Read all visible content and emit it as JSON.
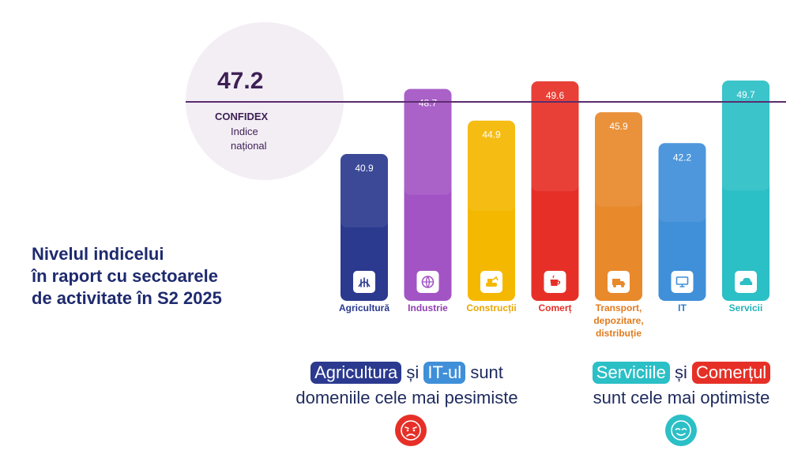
{
  "national": {
    "value": "47.2",
    "name": "CONFIDEX",
    "subtitle": "Indice național",
    "value_num": 47.2
  },
  "title_lines": [
    "Nivelul indicelui",
    "în raport cu sectoarele",
    "de activitate în S2 2025"
  ],
  "chart_data": {
    "type": "bar",
    "title": "Nivelul indicelui în raport cu sectoarele de activitate în S2 2025",
    "categories": [
      "Agricultură",
      "Industrie",
      "Construcții",
      "Comerț",
      "Transport, depozitare, distribuție",
      "IT",
      "Servicii"
    ],
    "category_lines": [
      [
        "Agricultură"
      ],
      [
        "Industrie"
      ],
      [
        "Construcții"
      ],
      [
        "Comerț"
      ],
      [
        "Transport,",
        "depozitare,",
        "distribuție"
      ],
      [
        "IT"
      ],
      [
        "Servicii"
      ]
    ],
    "values": [
      40.9,
      48.7,
      44.9,
      49.6,
      45.9,
      42.2,
      49.7
    ],
    "value_labels": [
      "40.9",
      "48.7",
      "44.9",
      "49.6",
      "45.9",
      "42.2",
      "49.7"
    ],
    "colors": [
      "#2b3a8f",
      "#a354c4",
      "#f5b800",
      "#e63027",
      "#e8892b",
      "#3f8fd9",
      "#2bbfc6"
    ],
    "label_colors": [
      "#2b3a8f",
      "#8f3fb0",
      "#e8a600",
      "#e63027",
      "#e07b1e",
      "#2f7dc8",
      "#22b3ba"
    ],
    "icons": [
      "wheat-icon",
      "globe-gear-icon",
      "excavator-icon",
      "coffee-cup-icon",
      "truck-icon",
      "monitor-icon",
      "cloud-icon"
    ],
    "reference_line": 47.2,
    "ylim": [
      0,
      50
    ]
  },
  "notes": {
    "left": {
      "pill1": "Agricultura",
      "join": "și",
      "pill2": "IT-ul",
      "tail": "sunt",
      "line2": "domeniile cele mai pesimiste"
    },
    "right": {
      "pill1": "Serviciile",
      "join": "și",
      "pill2": "Comerțul",
      "line2": "sunt cele mai optimiste"
    }
  },
  "colors": {
    "navy": "#1e2a6e",
    "sad": "#e63027",
    "happy": "#2bbfc6",
    "agri": "#2b3a8f",
    "it": "#3f8fd9",
    "serv": "#2bbfc6",
    "com": "#e63027"
  }
}
